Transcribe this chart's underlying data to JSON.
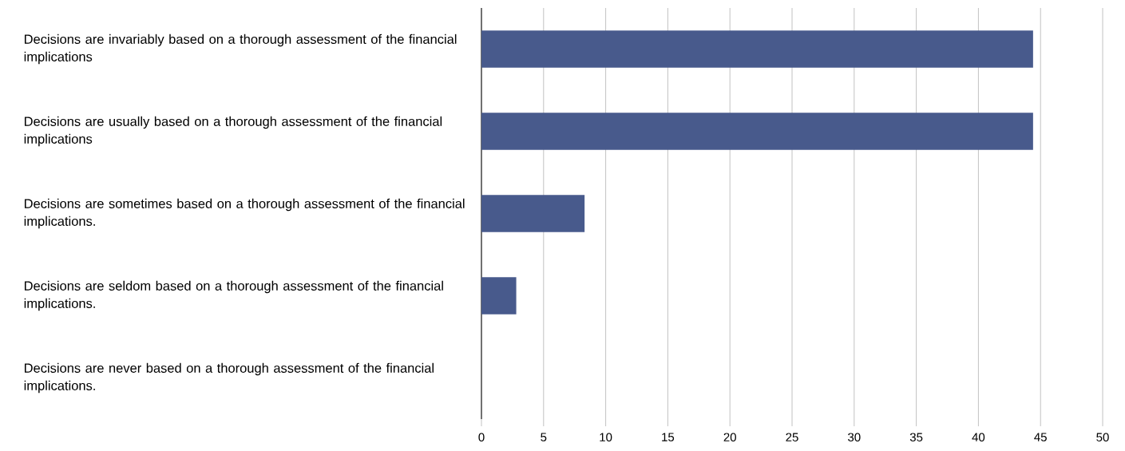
{
  "chart_data": {
    "type": "bar",
    "orientation": "horizontal",
    "categories": [
      "Decisions are invariably based on a thorough assessment of the financial implications",
      "Decisions are usually based on a thorough assessment of the financial implications",
      "Decisions are sometimes based on a thorough assessment of the financial implications.",
      "Decisions are seldom based on a thorough assessment of the financial implications.",
      "Decisions are never based on a thorough assessment of the financial implications."
    ],
    "values": [
      44.4,
      44.4,
      8.3,
      2.8,
      0
    ],
    "color": "#485a8c",
    "xlim": [
      0,
      50
    ],
    "xticks": [
      0,
      5,
      10,
      15,
      20,
      25,
      30,
      35,
      40,
      45,
      50
    ],
    "grid": "x"
  }
}
